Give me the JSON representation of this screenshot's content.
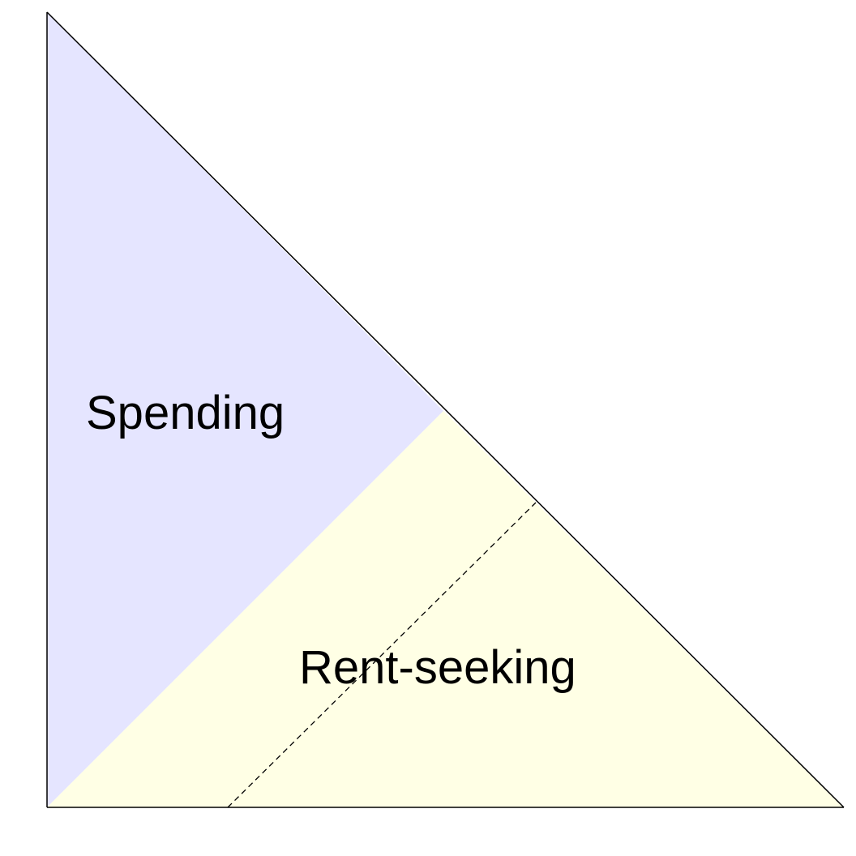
{
  "regions": {
    "spending": {
      "label": "Spending",
      "color": "#e5e5ff"
    },
    "rent_seeking": {
      "label": "Rent-seeking",
      "color": "#ffffe5"
    }
  },
  "line_color": "#000000",
  "background_color": "#ffffff"
}
